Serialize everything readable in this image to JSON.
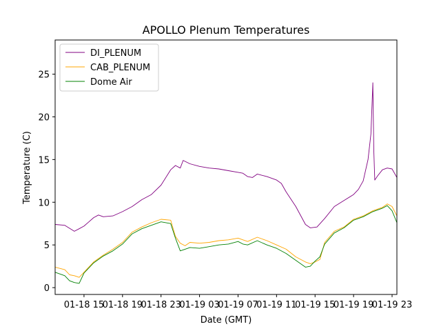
{
  "chart_data": {
    "type": "line",
    "title": "APOLLO Plenum Temperatures",
    "xlabel": "Date (GMT)",
    "ylabel": "Temperature (C)",
    "x_unit": "hours since 01-18 12:00 (GMT)",
    "xlim": [
      0,
      35.5
    ],
    "ylim": [
      -0.8,
      29.0
    ],
    "x_ticks": [
      {
        "value": 3,
        "label": "01-18 15"
      },
      {
        "value": 7,
        "label": "01-18 19"
      },
      {
        "value": 11,
        "label": "01-18 23"
      },
      {
        "value": 15,
        "label": "01-19 03"
      },
      {
        "value": 19,
        "label": "01-19 07"
      },
      {
        "value": 23,
        "label": "01-19 11"
      },
      {
        "value": 27,
        "label": "01-19 15"
      },
      {
        "value": 31,
        "label": "01-19 19"
      },
      {
        "value": 35,
        "label": "01-19 23"
      }
    ],
    "y_ticks": [
      {
        "value": 0,
        "label": "0"
      },
      {
        "value": 5,
        "label": "5"
      },
      {
        "value": 10,
        "label": "10"
      },
      {
        "value": 15,
        "label": "15"
      },
      {
        "value": 20,
        "label": "20"
      },
      {
        "value": 25,
        "label": "25"
      }
    ],
    "legend_position": "top-left",
    "series": [
      {
        "name": "DI_PLENUM",
        "color": "#800080",
        "points": [
          [
            0,
            7.4
          ],
          [
            1,
            7.3
          ],
          [
            2,
            6.6
          ],
          [
            2.5,
            6.9
          ],
          [
            3,
            7.2
          ],
          [
            4,
            8.2
          ],
          [
            4.5,
            8.5
          ],
          [
            5,
            8.3
          ],
          [
            6,
            8.4
          ],
          [
            7,
            8.9
          ],
          [
            8,
            9.5
          ],
          [
            9,
            10.3
          ],
          [
            10,
            10.9
          ],
          [
            11,
            12.0
          ],
          [
            12,
            13.8
          ],
          [
            12.5,
            14.3
          ],
          [
            13,
            14.0
          ],
          [
            13.3,
            14.9
          ],
          [
            14,
            14.5
          ],
          [
            15,
            14.2
          ],
          [
            16,
            14.0
          ],
          [
            17,
            13.9
          ],
          [
            18,
            13.7
          ],
          [
            19,
            13.5
          ],
          [
            19.5,
            13.4
          ],
          [
            20,
            13.0
          ],
          [
            20.5,
            12.9
          ],
          [
            21,
            13.3
          ],
          [
            22,
            13.0
          ],
          [
            23,
            12.6
          ],
          [
            23.5,
            12.2
          ],
          [
            24,
            11.2
          ],
          [
            25,
            9.5
          ],
          [
            26,
            7.4
          ],
          [
            26.5,
            7.0
          ],
          [
            27.2,
            7.1
          ],
          [
            28,
            8.1
          ],
          [
            29,
            9.5
          ],
          [
            30,
            10.2
          ],
          [
            31,
            10.9
          ],
          [
            31.5,
            11.5
          ],
          [
            32,
            12.5
          ],
          [
            32.5,
            15.0
          ],
          [
            32.8,
            18.0
          ],
          [
            33.0,
            24.0
          ],
          [
            33.1,
            16.0
          ],
          [
            33.2,
            12.6
          ],
          [
            33.5,
            13.1
          ],
          [
            34,
            13.8
          ],
          [
            34.5,
            14.0
          ],
          [
            35,
            13.9
          ],
          [
            35.5,
            12.9
          ]
        ]
      },
      {
        "name": "CAB_PLENUM",
        "color": "#FFA500",
        "points": [
          [
            0,
            2.4
          ],
          [
            1,
            2.1
          ],
          [
            1.5,
            1.5
          ],
          [
            2,
            1.4
          ],
          [
            2.5,
            1.2
          ],
          [
            3,
            1.8
          ],
          [
            4,
            3.0
          ],
          [
            5,
            3.8
          ],
          [
            6,
            4.5
          ],
          [
            7,
            5.3
          ],
          [
            8,
            6.5
          ],
          [
            9,
            7.1
          ],
          [
            10,
            7.6
          ],
          [
            11,
            8.0
          ],
          [
            12,
            7.9
          ],
          [
            12.5,
            6.0
          ],
          [
            13,
            5.2
          ],
          [
            13.5,
            4.9
          ],
          [
            14,
            5.3
          ],
          [
            15,
            5.2
          ],
          [
            16,
            5.3
          ],
          [
            17,
            5.5
          ],
          [
            18,
            5.6
          ],
          [
            19,
            5.8
          ],
          [
            19.5,
            5.6
          ],
          [
            20,
            5.4
          ],
          [
            21,
            5.9
          ],
          [
            22,
            5.5
          ],
          [
            23,
            5.0
          ],
          [
            24,
            4.5
          ],
          [
            25,
            3.6
          ],
          [
            26,
            3.0
          ],
          [
            26.5,
            2.8
          ],
          [
            27,
            3.0
          ],
          [
            27.5,
            3.3
          ],
          [
            28,
            5.3
          ],
          [
            29,
            6.6
          ],
          [
            30,
            7.1
          ],
          [
            31,
            8.0
          ],
          [
            32,
            8.4
          ],
          [
            33,
            9.0
          ],
          [
            34,
            9.4
          ],
          [
            34.5,
            9.8
          ],
          [
            35,
            9.5
          ],
          [
            35.5,
            8.4
          ]
        ]
      },
      {
        "name": "Dome Air",
        "color": "#008000",
        "points": [
          [
            0,
            1.8
          ],
          [
            1,
            1.4
          ],
          [
            1.5,
            0.8
          ],
          [
            2,
            0.6
          ],
          [
            2.5,
            0.5
          ],
          [
            3,
            1.7
          ],
          [
            4,
            2.9
          ],
          [
            5,
            3.7
          ],
          [
            6,
            4.3
          ],
          [
            7,
            5.1
          ],
          [
            8,
            6.3
          ],
          [
            9,
            6.9
          ],
          [
            10,
            7.3
          ],
          [
            11,
            7.7
          ],
          [
            12,
            7.5
          ],
          [
            12.5,
            5.8
          ],
          [
            13,
            4.3
          ],
          [
            13.5,
            4.5
          ],
          [
            14,
            4.7
          ],
          [
            15,
            4.6
          ],
          [
            16,
            4.8
          ],
          [
            17,
            5.0
          ],
          [
            18,
            5.1
          ],
          [
            19,
            5.4
          ],
          [
            19.5,
            5.1
          ],
          [
            20,
            5.0
          ],
          [
            21,
            5.5
          ],
          [
            22,
            5.0
          ],
          [
            23,
            4.6
          ],
          [
            24,
            4.0
          ],
          [
            25,
            3.2
          ],
          [
            26,
            2.4
          ],
          [
            26.5,
            2.5
          ],
          [
            27,
            3.1
          ],
          [
            27.5,
            3.6
          ],
          [
            28,
            5.1
          ],
          [
            29,
            6.4
          ],
          [
            30,
            7.0
          ],
          [
            31,
            7.9
          ],
          [
            32,
            8.3
          ],
          [
            33,
            8.9
          ],
          [
            34,
            9.3
          ],
          [
            34.5,
            9.6
          ],
          [
            35,
            9.0
          ],
          [
            35.5,
            7.6
          ]
        ]
      }
    ]
  }
}
